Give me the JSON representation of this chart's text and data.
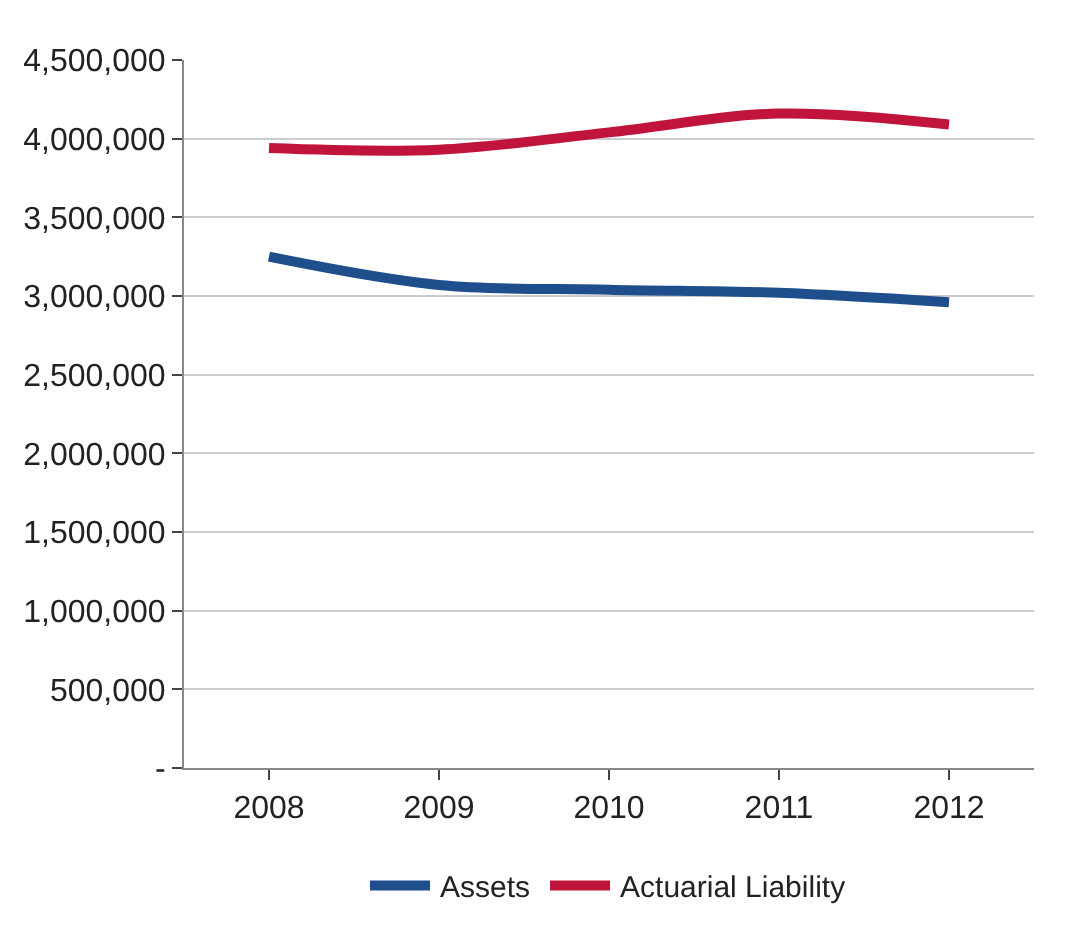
{
  "chart_data": {
    "type": "line",
    "categories": [
      "2008",
      "2009",
      "2010",
      "2011",
      "2012"
    ],
    "series": [
      {
        "name": "Assets",
        "color": "#1f4e8c",
        "values": [
          3250000,
          3070000,
          3040000,
          3020000,
          2960000
        ]
      },
      {
        "name": "Actuarial Liability",
        "color": "#c0143c",
        "values": [
          3940000,
          3930000,
          4040000,
          4160000,
          4090000
        ]
      }
    ],
    "ylim": [
      0,
      4500000
    ],
    "yticks": [
      {
        "value": 0,
        "label": "-"
      },
      {
        "value": 500000,
        "label": "500,000"
      },
      {
        "value": 1000000,
        "label": "1,000,000"
      },
      {
        "value": 1500000,
        "label": "1,500,000"
      },
      {
        "value": 2000000,
        "label": "2,000,000"
      },
      {
        "value": 2500000,
        "label": "2,500,000"
      },
      {
        "value": 3000000,
        "label": "3,000,000"
      },
      {
        "value": 3500000,
        "label": "3,500,000"
      },
      {
        "value": 4000000,
        "label": "4,000,000"
      },
      {
        "value": 4500000,
        "label": "4,500,000"
      }
    ],
    "grid": "y",
    "legend": "bottom",
    "marker": "none",
    "line_style": "solid"
  }
}
